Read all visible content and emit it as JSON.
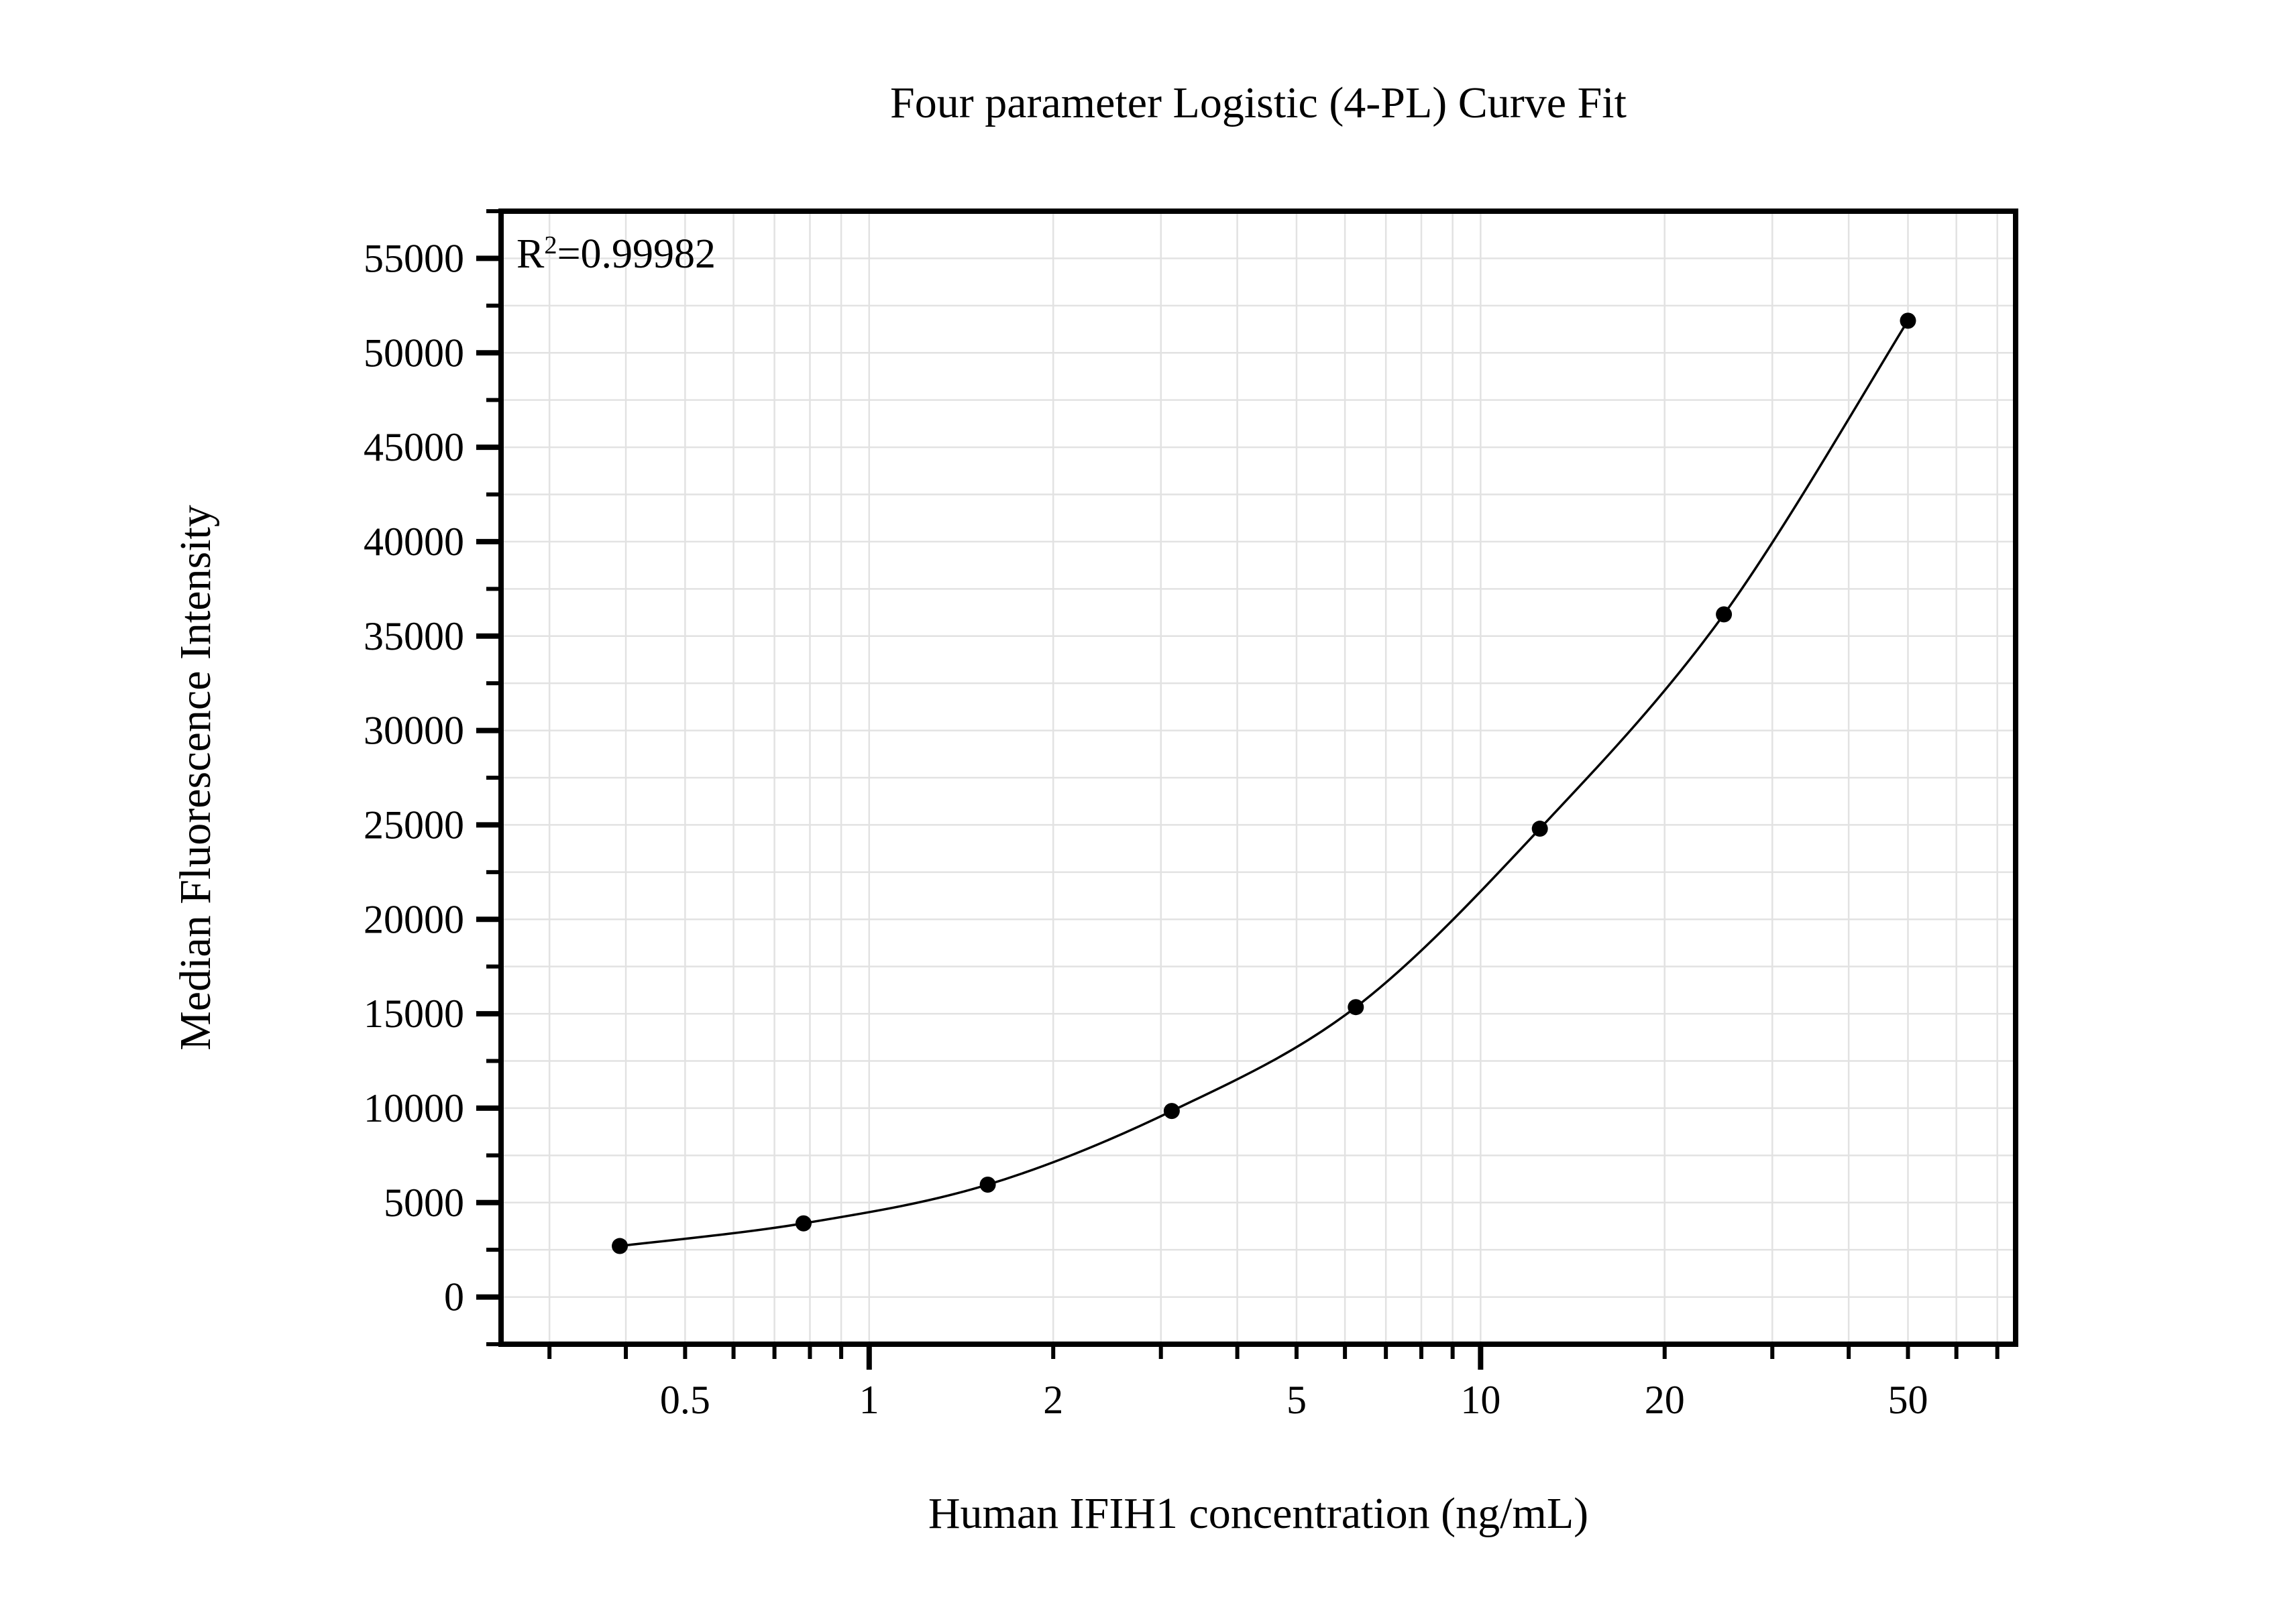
{
  "page": {
    "background_color": "#ffffff",
    "text_color": "#000000"
  },
  "chart_data": {
    "type": "scatter",
    "title": "Four parameter Logistic (4-PL) Curve Fit",
    "xlabel": "Human IFIH1 concentration (ng/mL)",
    "ylabel": "Median Fluorescence Intensity",
    "annotation": {
      "prefix": "R",
      "sup": "2",
      "rest": "=0.99982"
    },
    "x_scale": "log",
    "y_scale": "linear",
    "xlim": [
      0.25,
      75
    ],
    "ylim": [
      -2500,
      57500
    ],
    "grid": {
      "show": true,
      "color": "#e2e2e2"
    },
    "x_ticks": {
      "major": [
        1,
        10
      ],
      "minor": [
        0.3,
        0.4,
        0.5,
        0.6,
        0.7,
        0.8,
        0.9,
        2,
        3,
        4,
        5,
        6,
        7,
        8,
        9,
        20,
        30,
        40,
        50,
        60,
        70
      ],
      "labels": [
        {
          "v": 0.5,
          "t": "0.5"
        },
        {
          "v": 1,
          "t": "1"
        },
        {
          "v": 2,
          "t": "2"
        },
        {
          "v": 5,
          "t": "5"
        },
        {
          "v": 10,
          "t": "10"
        },
        {
          "v": 20,
          "t": "20"
        },
        {
          "v": 50,
          "t": "50"
        }
      ]
    },
    "y_ticks": {
      "major": [
        0,
        5000,
        10000,
        15000,
        20000,
        25000,
        30000,
        35000,
        40000,
        45000,
        50000,
        55000
      ],
      "minor": [
        -2500,
        2500,
        7500,
        12500,
        17500,
        22500,
        27500,
        32500,
        37500,
        42500,
        47500,
        52500,
        57500
      ],
      "gridlines": [
        0,
        2500,
        5000,
        7500,
        10000,
        12500,
        15000,
        17500,
        20000,
        22500,
        25000,
        27500,
        30000,
        32500,
        35000,
        37500,
        40000,
        42500,
        45000,
        47500,
        50000,
        52500,
        55000
      ],
      "labels": [
        "0",
        "5000",
        "10000",
        "15000",
        "20000",
        "25000",
        "30000",
        "35000",
        "40000",
        "45000",
        "50000",
        "55000"
      ]
    },
    "series": [
      {
        "name": "standard-curve-points",
        "marker": "filled-circle",
        "color": "#000000",
        "x": [
          0.391,
          0.781,
          1.563,
          3.125,
          6.25,
          12.5,
          25,
          50
        ],
        "y": [
          2700,
          3900,
          5950,
          9850,
          15350,
          24800,
          36150,
          51700
        ]
      }
    ],
    "fit_curve": {
      "name": "4PL-fit-line",
      "style": "smooth-through-points",
      "color": "#000000"
    },
    "legend": {
      "show": false
    }
  }
}
